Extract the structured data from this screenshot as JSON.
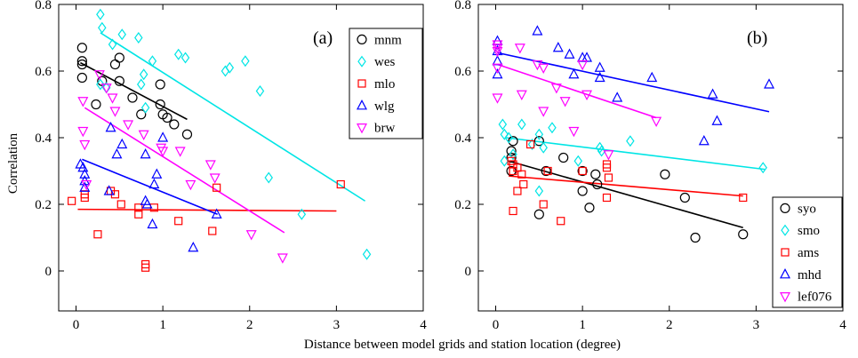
{
  "figure": {
    "xlabel": "Distance between model grids and station location (degree)",
    "ylabel": "Correlation"
  },
  "chart_data": [
    {
      "type": "scatter",
      "panel_label": "(a)",
      "xlim": [
        -0.2,
        4.0
      ],
      "ylim": [
        -0.12,
        0.8
      ],
      "xticks": [
        0,
        1,
        2,
        3,
        4
      ],
      "yticks": [
        0,
        0.2,
        0.4,
        0.6,
        0.8
      ],
      "xticklabels": [
        "0",
        "1",
        "2",
        "3",
        "4"
      ],
      "yticklabels": [
        "0",
        "0.2",
        "0.4",
        "0.6",
        "0.8"
      ],
      "ylabel": "Correlation",
      "legend_position": "top-right",
      "series": [
        {
          "name": "mnm",
          "marker": "circle",
          "color": "#000000",
          "points": [
            [
              0.07,
              0.67
            ],
            [
              0.07,
              0.63
            ],
            [
              0.07,
              0.62
            ],
            [
              0.07,
              0.58
            ],
            [
              0.23,
              0.5
            ],
            [
              0.3,
              0.57
            ],
            [
              0.45,
              0.62
            ],
            [
              0.5,
              0.64
            ],
            [
              0.5,
              0.57
            ],
            [
              0.65,
              0.52
            ],
            [
              0.75,
              0.47
            ],
            [
              0.97,
              0.56
            ],
            [
              0.97,
              0.5
            ],
            [
              1.0,
              0.47
            ],
            [
              1.05,
              0.46
            ],
            [
              1.13,
              0.44
            ],
            [
              1.28,
              0.41
            ]
          ],
          "fit": [
            [
              0.05,
              0.625
            ],
            [
              1.28,
              0.455
            ]
          ]
        },
        {
          "name": "wes",
          "marker": "diamond",
          "color": "#00e5e5",
          "points": [
            [
              0.28,
              0.77
            ],
            [
              0.3,
              0.73
            ],
            [
              0.28,
              0.56
            ],
            [
              0.35,
              0.55
            ],
            [
              0.42,
              0.68
            ],
            [
              0.53,
              0.71
            ],
            [
              0.72,
              0.7
            ],
            [
              0.75,
              0.56
            ],
            [
              0.78,
              0.59
            ],
            [
              0.8,
              0.49
            ],
            [
              0.88,
              0.63
            ],
            [
              1.18,
              0.65
            ],
            [
              1.26,
              0.64
            ],
            [
              1.72,
              0.6
            ],
            [
              1.77,
              0.61
            ],
            [
              1.95,
              0.63
            ],
            [
              2.12,
              0.54
            ],
            [
              2.22,
              0.28
            ],
            [
              2.6,
              0.17
            ],
            [
              3.35,
              0.05
            ]
          ],
          "fit": [
            [
              0.28,
              0.715
            ],
            [
              3.33,
              0.21
            ]
          ]
        },
        {
          "name": "mlo",
          "marker": "square",
          "color": "#ff0000",
          "points": [
            [
              -0.05,
              0.21
            ],
            [
              0.1,
              0.23
            ],
            [
              0.1,
              0.22
            ],
            [
              0.25,
              0.11
            ],
            [
              0.4,
              0.24
            ],
            [
              0.45,
              0.23
            ],
            [
              0.52,
              0.2
            ],
            [
              0.72,
              0.19
            ],
            [
              0.72,
              0.17
            ],
            [
              0.8,
              0.02
            ],
            [
              0.8,
              0.01
            ],
            [
              0.9,
              0.19
            ],
            [
              1.18,
              0.15
            ],
            [
              1.57,
              0.12
            ],
            [
              1.62,
              0.25
            ],
            [
              3.05,
              0.26
            ]
          ],
          "fit": [
            [
              0.02,
              0.185
            ],
            [
              3.0,
              0.18
            ]
          ]
        },
        {
          "name": "wlg",
          "marker": "triangle-up",
          "color": "#0000ff",
          "points": [
            [
              0.05,
              0.32
            ],
            [
              0.08,
              0.31
            ],
            [
              0.1,
              0.29
            ],
            [
              0.1,
              0.25
            ],
            [
              0.1,
              0.27
            ],
            [
              0.38,
              0.24
            ],
            [
              0.4,
              0.43
            ],
            [
              0.47,
              0.35
            ],
            [
              0.53,
              0.38
            ],
            [
              0.8,
              0.35
            ],
            [
              0.8,
              0.21
            ],
            [
              0.82,
              0.2
            ],
            [
              0.88,
              0.14
            ],
            [
              0.9,
              0.26
            ],
            [
              0.93,
              0.29
            ],
            [
              1.0,
              0.4
            ],
            [
              1.35,
              0.07
            ],
            [
              1.62,
              0.17
            ]
          ],
          "fit": [
            [
              0.07,
              0.335
            ],
            [
              1.63,
              0.17
            ]
          ]
        },
        {
          "name": "brw",
          "marker": "triangle-down",
          "color": "#ff00ff",
          "points": [
            [
              0.08,
              0.51
            ],
            [
              0.08,
              0.42
            ],
            [
              0.1,
              0.38
            ],
            [
              0.12,
              0.26
            ],
            [
              0.27,
              0.59
            ],
            [
              0.35,
              0.55
            ],
            [
              0.42,
              0.52
            ],
            [
              0.45,
              0.48
            ],
            [
              0.6,
              0.44
            ],
            [
              0.78,
              0.41
            ],
            [
              0.98,
              0.37
            ],
            [
              1.0,
              0.36
            ],
            [
              1.2,
              0.36
            ],
            [
              1.32,
              0.26
            ],
            [
              1.55,
              0.32
            ],
            [
              1.6,
              0.28
            ],
            [
              2.02,
              0.11
            ],
            [
              2.38,
              0.04
            ]
          ],
          "fit": [
            [
              0.1,
              0.49
            ],
            [
              2.4,
              0.115
            ]
          ]
        }
      ]
    },
    {
      "type": "scatter",
      "panel_label": "(b)",
      "xlim": [
        -0.2,
        4.0
      ],
      "ylim": [
        -0.12,
        0.8
      ],
      "xticks": [
        0,
        1,
        2,
        3,
        4
      ],
      "yticks": [
        0,
        0.2,
        0.4,
        0.6,
        0.8
      ],
      "xticklabels": [
        "0",
        "1",
        "2",
        "3",
        "4"
      ],
      "yticklabels": [
        "0",
        "0.2",
        "0.4",
        "0.6",
        "0.8"
      ],
      "legend_position": "bottom-right",
      "series": [
        {
          "name": "syo",
          "marker": "circle",
          "color": "#000000",
          "points": [
            [
              0.2,
              0.39
            ],
            [
              0.18,
              0.36
            ],
            [
              0.18,
              0.34
            ],
            [
              0.18,
              0.3
            ],
            [
              0.5,
              0.39
            ],
            [
              0.5,
              0.17
            ],
            [
              0.58,
              0.3
            ],
            [
              0.78,
              0.34
            ],
            [
              1.0,
              0.3
            ],
            [
              1.0,
              0.24
            ],
            [
              1.08,
              0.19
            ],
            [
              1.15,
              0.29
            ],
            [
              1.17,
              0.26
            ],
            [
              1.95,
              0.29
            ],
            [
              2.18,
              0.22
            ],
            [
              2.3,
              0.1
            ],
            [
              2.85,
              0.11
            ]
          ],
          "fit": [
            [
              0.15,
              0.33
            ],
            [
              2.85,
              0.13
            ]
          ]
        },
        {
          "name": "smo",
          "marker": "diamond",
          "color": "#00e5e5",
          "points": [
            [
              0.08,
              0.44
            ],
            [
              0.1,
              0.41
            ],
            [
              0.1,
              0.33
            ],
            [
              0.15,
              0.4
            ],
            [
              0.2,
              0.35
            ],
            [
              0.3,
              0.44
            ],
            [
              0.42,
              0.38
            ],
            [
              0.5,
              0.41
            ],
            [
              0.55,
              0.37
            ],
            [
              0.65,
              0.43
            ],
            [
              0.95,
              0.33
            ],
            [
              1.2,
              0.37
            ],
            [
              1.22,
              0.36
            ],
            [
              1.55,
              0.39
            ],
            [
              3.08,
              0.31
            ],
            [
              0.5,
              0.24
            ]
          ],
          "fit": [
            [
              0.12,
              0.4
            ],
            [
              3.1,
              0.305
            ]
          ]
        },
        {
          "name": "ams",
          "marker": "square",
          "color": "#ff0000",
          "points": [
            [
              0.18,
              0.33
            ],
            [
              0.2,
              0.32
            ],
            [
              0.2,
              0.3
            ],
            [
              0.2,
              0.18
            ],
            [
              0.25,
              0.31
            ],
            [
              0.25,
              0.24
            ],
            [
              0.3,
              0.29
            ],
            [
              0.32,
              0.26
            ],
            [
              0.4,
              0.38
            ],
            [
              0.55,
              0.2
            ],
            [
              0.6,
              0.3
            ],
            [
              0.75,
              0.15
            ],
            [
              1.0,
              0.3
            ],
            [
              1.28,
              0.32
            ],
            [
              1.28,
              0.31
            ],
            [
              1.3,
              0.28
            ],
            [
              1.28,
              0.22
            ],
            [
              2.85,
              0.22
            ]
          ],
          "fit": [
            [
              0.15,
              0.285
            ],
            [
              2.85,
              0.225
            ]
          ]
        },
        {
          "name": "mhd",
          "marker": "triangle-up",
          "color": "#0000ff",
          "points": [
            [
              0.02,
              0.69
            ],
            [
              0.02,
              0.66
            ],
            [
              0.02,
              0.63
            ],
            [
              0.02,
              0.59
            ],
            [
              0.48,
              0.72
            ],
            [
              0.72,
              0.67
            ],
            [
              0.85,
              0.65
            ],
            [
              0.9,
              0.59
            ],
            [
              1.0,
              0.64
            ],
            [
              1.05,
              0.64
            ],
            [
              1.2,
              0.61
            ],
            [
              1.2,
              0.58
            ],
            [
              1.4,
              0.52
            ],
            [
              1.8,
              0.58
            ],
            [
              2.4,
              0.39
            ],
            [
              2.5,
              0.53
            ],
            [
              2.55,
              0.45
            ],
            [
              3.15,
              0.56
            ]
          ],
          "fit": [
            [
              0.02,
              0.655
            ],
            [
              3.15,
              0.478
            ]
          ]
        },
        {
          "name": "lef076",
          "marker": "triangle-down",
          "color": "#ff00ff",
          "points": [
            [
              0.02,
              0.68
            ],
            [
              0.02,
              0.67
            ],
            [
              0.02,
              0.66
            ],
            [
              0.02,
              0.61
            ],
            [
              0.02,
              0.52
            ],
            [
              0.28,
              0.67
            ],
            [
              0.3,
              0.53
            ],
            [
              0.48,
              0.62
            ],
            [
              0.55,
              0.61
            ],
            [
              0.55,
              0.48
            ],
            [
              0.7,
              0.55
            ],
            [
              0.8,
              0.51
            ],
            [
              0.9,
              0.42
            ],
            [
              1.0,
              0.62
            ],
            [
              1.05,
              0.53
            ],
            [
              1.3,
              0.35
            ],
            [
              1.85,
              0.45
            ]
          ],
          "fit": [
            [
              0.02,
              0.62
            ],
            [
              1.85,
              0.46
            ]
          ]
        }
      ]
    }
  ]
}
